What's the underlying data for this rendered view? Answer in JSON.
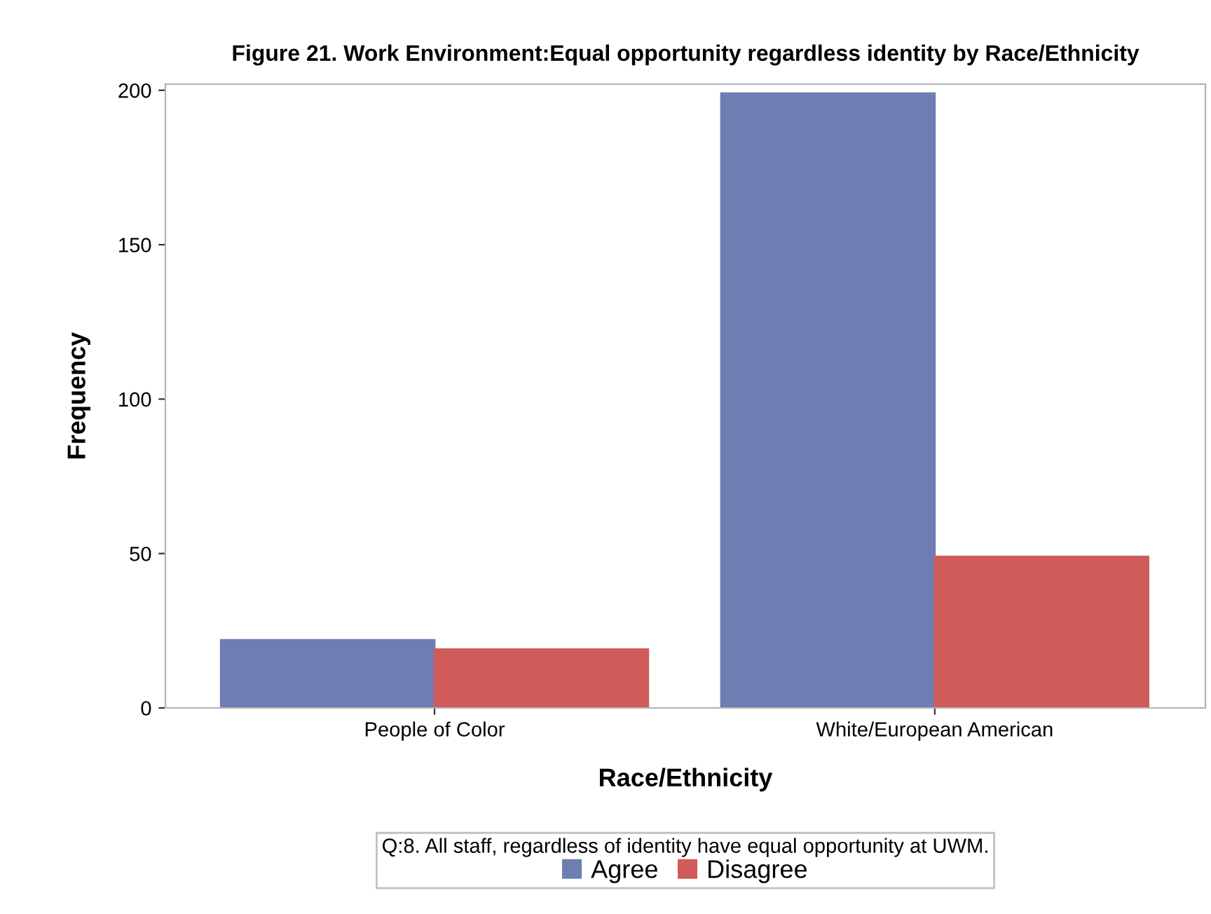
{
  "chart_data": {
    "type": "bar",
    "title": "Figure 21. Work Environment:Equal opportunity regardless identity by Race/Ethnicity",
    "xlabel": "Race/Ethnicity",
    "ylabel": "Frequency",
    "categories": [
      "People of Color",
      "White/European American"
    ],
    "series": [
      {
        "name": "Agree",
        "color": "#6f7eb2",
        "values": [
          22,
          199
        ]
      },
      {
        "name": "Disagree",
        "color": "#d05b5b",
        "values": [
          19,
          49
        ]
      }
    ],
    "ylim": [
      0,
      202
    ],
    "yticks": [
      0,
      50,
      100,
      150,
      200
    ],
    "grid": false,
    "legend": "bottom",
    "legend_title": "Q:8. All staff, regardless of identity have equal opportunity at UWM."
  }
}
